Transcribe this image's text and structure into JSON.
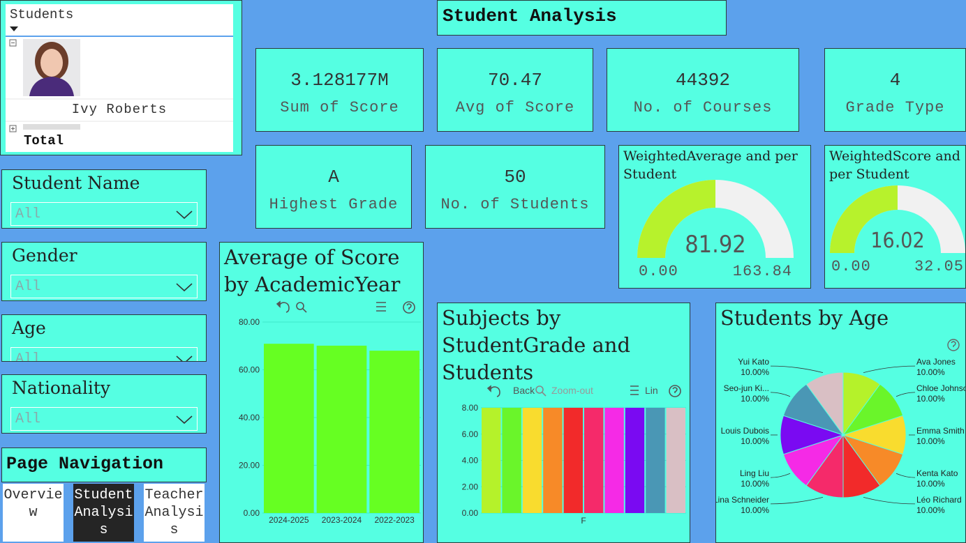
{
  "title": "Student Analysis",
  "students_panel": {
    "header": "Students",
    "name": "Ivy Roberts",
    "total": "Total"
  },
  "kpis": [
    {
      "value": "3.128177M",
      "label": "Sum of Score"
    },
    {
      "value": 70.47,
      "label": "Avg of Score"
    },
    {
      "value": 44392,
      "label": "No. of Courses"
    },
    {
      "value": 4,
      "label": "Grade Type"
    },
    {
      "value": "A",
      "label": "Highest Grade"
    },
    {
      "value": 50,
      "label": "No. of Students"
    }
  ],
  "filters": [
    {
      "label": "Student Name",
      "value": "All"
    },
    {
      "label": "Gender",
      "value": "All"
    },
    {
      "label": "Age",
      "value": "All"
    },
    {
      "label": "Nationality",
      "value": "All"
    }
  ],
  "navigation": {
    "title": "Page Navigation",
    "buttons": [
      "Overview",
      "Student Analysis",
      "Teacher Analysis"
    ]
  },
  "gauges": [
    {
      "title": "WeightedAverage and per Student",
      "value": 81.92,
      "min": {
        "value": 0,
        "label": "0.00"
      },
      "max": 163.84,
      "color": "#b7f22c"
    },
    {
      "title": "WeightedScore and per Student",
      "value": 16.02,
      "min": {
        "value": 0,
        "label": "0.00"
      },
      "max": 32.05,
      "color": "#b7f22c"
    }
  ],
  "chart_data": [
    {
      "type": "bar",
      "title": "Average of Score by AcademicYear",
      "categories": [
        "2024-2025",
        "2023-2024",
        "2022-2023"
      ],
      "values": [
        70.9,
        70.1,
        68.0
      ],
      "color": "#66ff22",
      "ylim": [
        0,
        80
      ],
      "yticks": [
        {
          "value": 0,
          "label": "0.00"
        },
        {
          "value": 20,
          "label": "20.00"
        },
        {
          "value": 40,
          "label": "40.00"
        },
        {
          "value": 60,
          "label": "60.00"
        },
        {
          "value": 80,
          "label": "80.00"
        }
      ],
      "grid": true
    },
    {
      "type": "grouped_bar",
      "title": "Subjects by StudentGrade and Students",
      "toolbar": [
        "Back",
        "Zoom-out",
        "Lin"
      ],
      "categories": [
        "F"
      ],
      "series": [
        {
          "color": "#b5f22a",
          "values": [
            8
          ]
        },
        {
          "color": "#6af52a",
          "values": [
            8
          ]
        },
        {
          "color": "#f9dc2e",
          "values": [
            8
          ]
        },
        {
          "color": "#f78a28",
          "values": [
            8
          ]
        },
        {
          "color": "#f22a2a",
          "values": [
            8
          ]
        },
        {
          "color": "#f52a6a",
          "values": [
            8
          ]
        },
        {
          "color": "#f52ae6",
          "values": [
            8
          ]
        },
        {
          "color": "#7a0af2",
          "values": [
            8
          ]
        },
        {
          "color": "#4a97b5",
          "values": [
            8
          ]
        },
        {
          "color": "#d9bfc4",
          "values": [
            8
          ]
        }
      ],
      "ylim": [
        0,
        8
      ],
      "yticks": [
        {
          "value": 0,
          "label": "0.00"
        },
        {
          "value": 2,
          "label": "2.00"
        },
        {
          "value": 4,
          "label": "4.00"
        },
        {
          "value": 6,
          "label": "6.00"
        },
        {
          "value": 8,
          "label": "8.00"
        }
      ],
      "grid": true
    },
    {
      "type": "pie",
      "title": "Students by Age",
      "categories": [
        "Ava Jones",
        "Chloe Johnson",
        "Emma Smith",
        "Kenta Kato",
        "Léo Richard",
        "Lina Schneider",
        "Ling Liu",
        "Louis Dubois",
        "Seo-jun Ki...",
        "Yui Kato"
      ],
      "values": [
        10,
        10,
        10,
        10,
        10,
        10,
        10,
        10,
        10,
        10
      ],
      "value_labels": [
        "10.00%",
        "10.00%",
        "10.00%",
        "10.00%",
        "10.00%",
        "10.00%",
        "10.00%",
        "10.00%",
        "10.00%",
        "10.00%"
      ],
      "colors": [
        "#b5f22a",
        "#6af52a",
        "#f9dc2e",
        "#f78a28",
        "#f22a2a",
        "#f52a6a",
        "#f52ae6",
        "#7a0af2",
        "#4a97b5",
        "#d9bfc4"
      ]
    }
  ]
}
